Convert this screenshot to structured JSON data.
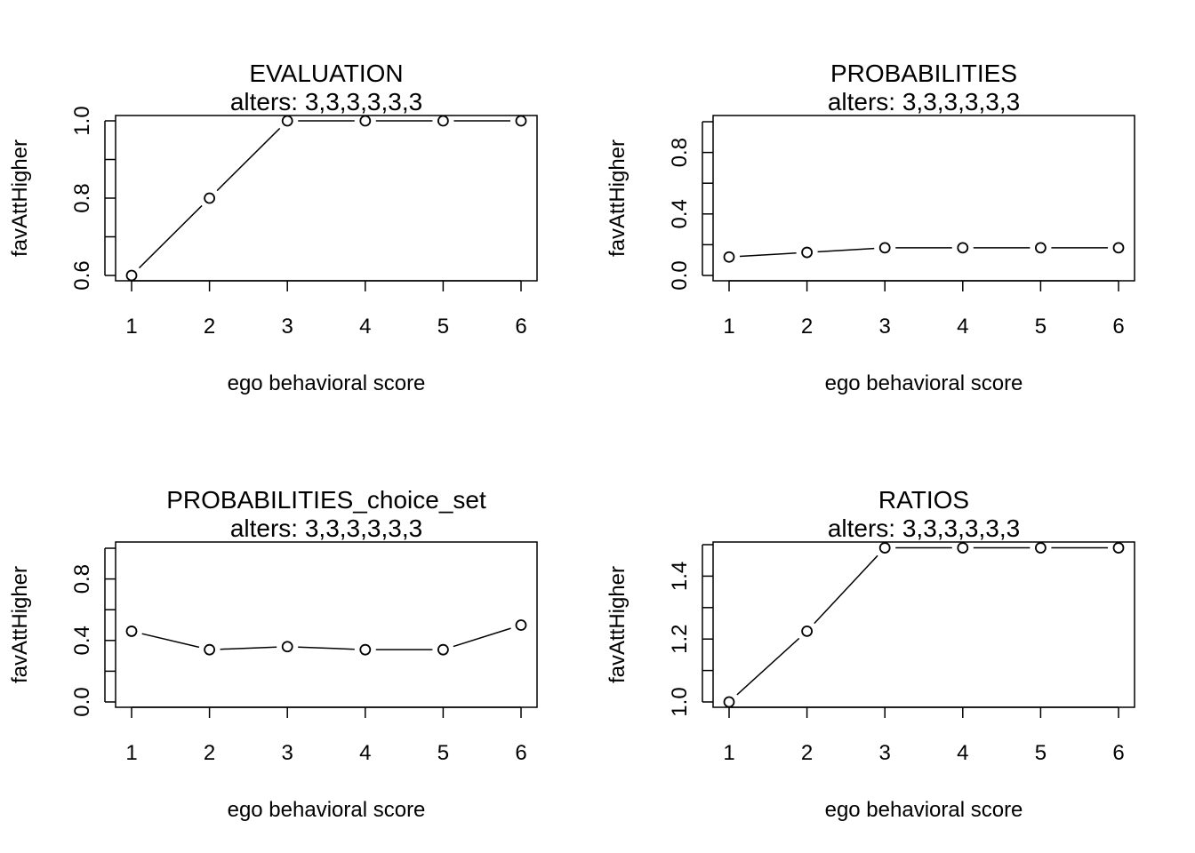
{
  "chart_data": [
    {
      "type": "line",
      "title": "EVALUATION",
      "subtitle": "alters: 3,3,3,3,3,3",
      "xlabel": "ego behavioral score",
      "ylabel": "favAttHigher",
      "x": [
        1,
        2,
        3,
        4,
        5,
        6
      ],
      "values": [
        0.6,
        0.8,
        1.0,
        1.0,
        1.0,
        1.0
      ],
      "xlim": [
        1,
        6
      ],
      "ylim": [
        0.6,
        1.0
      ],
      "xticks": [
        "1",
        "2",
        "3",
        "4",
        "5",
        "6"
      ],
      "yticks": [
        {
          "v": 0.6,
          "label": "0.6"
        },
        {
          "v": 0.7,
          "label": ""
        },
        {
          "v": 0.8,
          "label": "0.8"
        },
        {
          "v": 0.9,
          "label": ""
        },
        {
          "v": 1.0,
          "label": "1.0"
        }
      ],
      "grid": false,
      "markers": "open-circle"
    },
    {
      "type": "line",
      "title": "PROBABILITIES",
      "subtitle": "alters: 3,3,3,3,3,3",
      "xlabel": "ego behavioral score",
      "ylabel": "favAttHigher",
      "x": [
        1,
        2,
        3,
        4,
        5,
        6
      ],
      "values": [
        0.12,
        0.15,
        0.18,
        0.18,
        0.18,
        0.18
      ],
      "xlim": [
        1,
        6
      ],
      "ylim": [
        0.0,
        1.0
      ],
      "xticks": [
        "1",
        "2",
        "3",
        "4",
        "5",
        "6"
      ],
      "yticks": [
        {
          "v": 0.0,
          "label": "0.0"
        },
        {
          "v": 0.2,
          "label": ""
        },
        {
          "v": 0.4,
          "label": "0.4"
        },
        {
          "v": 0.6,
          "label": ""
        },
        {
          "v": 0.8,
          "label": "0.8"
        },
        {
          "v": 1.0,
          "label": ""
        }
      ],
      "grid": false,
      "markers": "open-circle"
    },
    {
      "type": "line",
      "title": "PROBABILITIES_choice_set",
      "subtitle": "alters: 3,3,3,3,3,3",
      "xlabel": "ego behavioral score",
      "ylabel": "favAttHigher",
      "x": [
        1,
        2,
        3,
        4,
        5,
        6
      ],
      "values": [
        0.46,
        0.34,
        0.36,
        0.34,
        0.34,
        0.5
      ],
      "xlim": [
        1,
        6
      ],
      "ylim": [
        0.0,
        1.0
      ],
      "xticks": [
        "1",
        "2",
        "3",
        "4",
        "5",
        "6"
      ],
      "yticks": [
        {
          "v": 0.0,
          "label": "0.0"
        },
        {
          "v": 0.2,
          "label": ""
        },
        {
          "v": 0.4,
          "label": "0.4"
        },
        {
          "v": 0.6,
          "label": ""
        },
        {
          "v": 0.8,
          "label": "0.8"
        },
        {
          "v": 1.0,
          "label": ""
        }
      ],
      "grid": false,
      "markers": "open-circle"
    },
    {
      "type": "line",
      "title": "RATIOS",
      "subtitle": "alters: 3,3,3,3,3,3",
      "xlabel": "ego behavioral score",
      "ylabel": "favAttHigher",
      "x": [
        1,
        2,
        3,
        4,
        5,
        6
      ],
      "values": [
        1.0,
        1.225,
        1.49,
        1.49,
        1.49,
        1.49
      ],
      "xlim": [
        1,
        6
      ],
      "ylim": [
        1.0,
        1.5
      ],
      "xticks": [
        "1",
        "2",
        "3",
        "4",
        "5",
        "6"
      ],
      "yticks": [
        {
          "v": 1.0,
          "label": "1.0"
        },
        {
          "v": 1.1,
          "label": ""
        },
        {
          "v": 1.2,
          "label": "1.2"
        },
        {
          "v": 1.3,
          "label": ""
        },
        {
          "v": 1.4,
          "label": "1.4"
        },
        {
          "v": 1.5,
          "label": ""
        }
      ],
      "grid": false,
      "markers": "open-circle"
    }
  ]
}
